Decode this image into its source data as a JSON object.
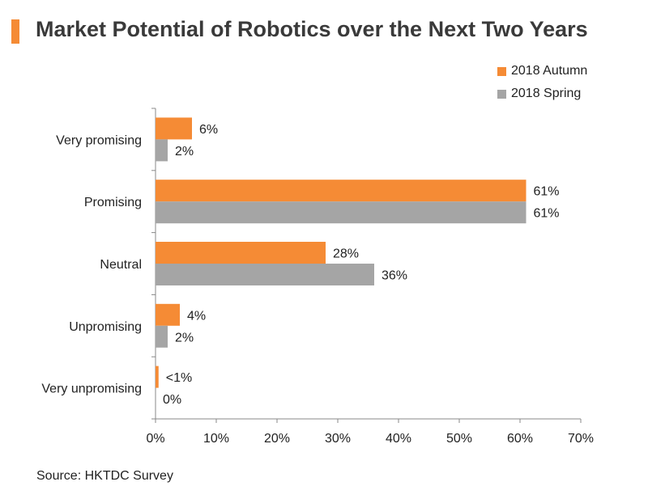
{
  "title": "Market Potential of Robotics over the Next Two Years",
  "source": "Source: HKTDC Survey",
  "colors": {
    "accent": "#f58b35",
    "autumn": "#f58b35",
    "spring": "#a5a5a5",
    "axis": "#888888"
  },
  "chart_data": {
    "type": "bar",
    "orientation": "horizontal",
    "categories": [
      "Very promising",
      "Promising",
      "Neutral",
      "Unpromising",
      "Very unpromising"
    ],
    "series": [
      {
        "name": "2018 Autumn",
        "values": [
          6,
          61,
          28,
          4,
          0.5
        ],
        "labels": [
          "6%",
          "61%",
          "28%",
          "4%",
          "<1%"
        ]
      },
      {
        "name": "2018 Spring",
        "values": [
          2,
          61,
          36,
          2,
          0
        ],
        "labels": [
          "2%",
          "61%",
          "36%",
          "2%",
          "0%"
        ]
      }
    ],
    "xlim": [
      0,
      70
    ],
    "xticks": [
      "0%",
      "10%",
      "20%",
      "30%",
      "40%",
      "50%",
      "60%",
      "70%"
    ],
    "legend_position": "top-right",
    "grid": false
  }
}
